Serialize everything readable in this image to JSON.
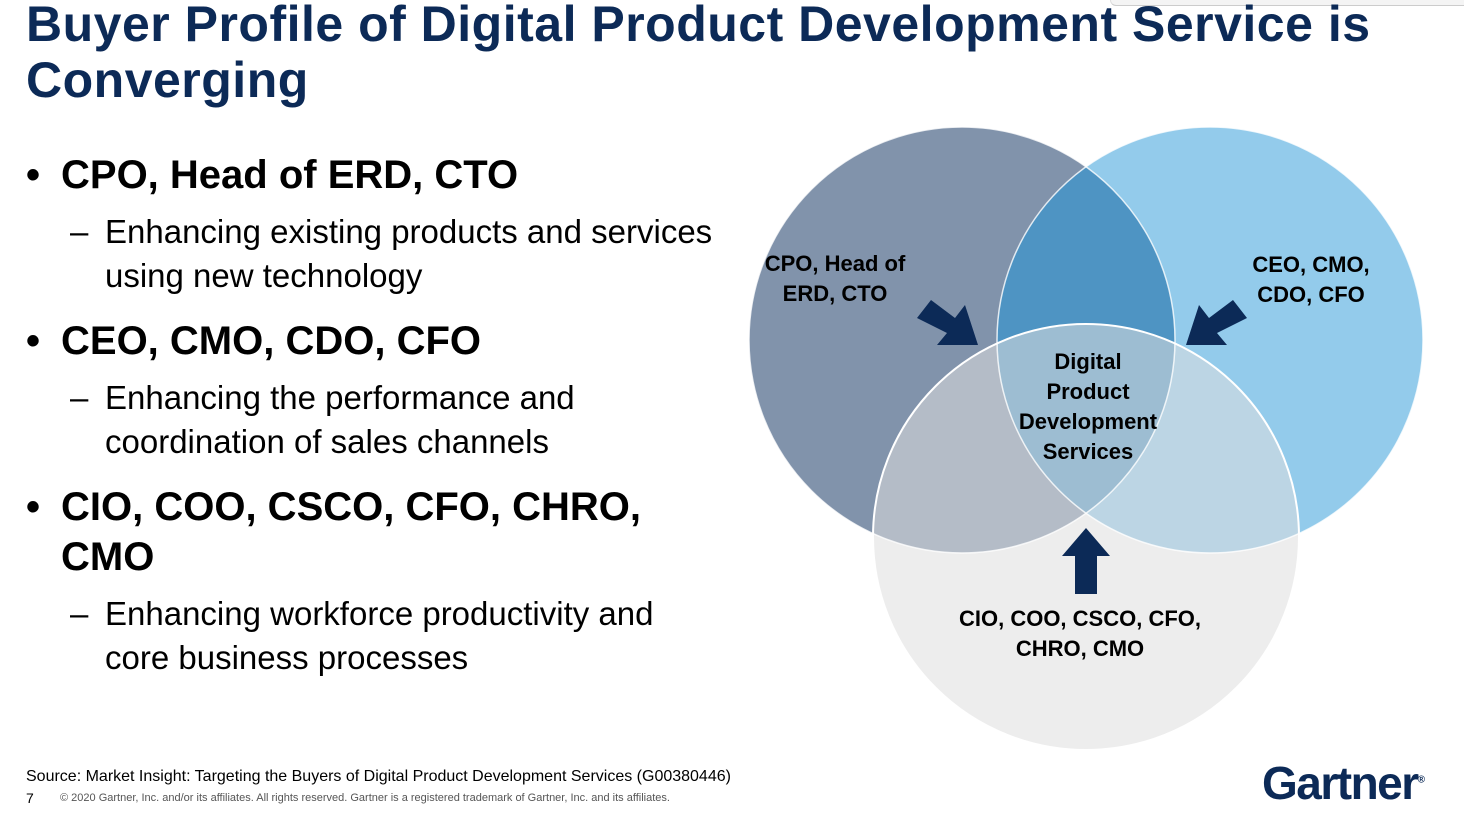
{
  "title": "Buyer Profile of Digital Product Development Service is Converging",
  "bullets": [
    {
      "heading": "CPO, Head of ERD, CTO",
      "detail": "Enhancing existing products and services using new technology"
    },
    {
      "heading": "CEO, CMO, CDO, CFO",
      "detail": "Enhancing the performance and coordination of sales channels"
    },
    {
      "heading": "CIO, COO, CSCO, CFO, CHRO, CMO",
      "detail": "Enhancing workforce productivity and core business processes"
    }
  ],
  "venn": {
    "left_label": "CPO, Head of ERD, CTO",
    "right_label": "CEO, CMO, CDO, CFO",
    "bottom_label": "CIO, COO, CSCO, CFO, CHRO, CMO",
    "center_label": "Digital Product Development Services",
    "colors": {
      "left": "#8193ab",
      "right": "#93cbeb",
      "bottom": "#dcdcdc",
      "overlap": "#4e94c3",
      "arrow": "#0c2a57"
    }
  },
  "footer": {
    "source": "Source: Market Insight: Targeting the Buyers of Digital Product Development Services (G00380446)",
    "page_number": "7",
    "copyright": "© 2020 Gartner, Inc. and/or its affiliates. All rights reserved. Gartner is a registered trademark of Gartner, Inc. and its affiliates.",
    "logo": "Gartner"
  }
}
